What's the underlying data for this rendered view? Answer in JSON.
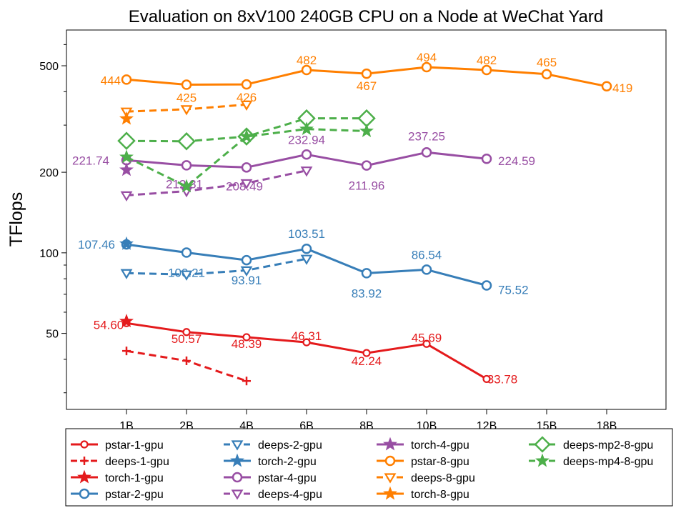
{
  "chart_data": {
    "type": "line",
    "title": "Evaluation on 8xV100 240GB CPU on a Node at WeChat Yard",
    "xlabel": "",
    "ylabel": "TFlops",
    "yscale": "log",
    "ylim": [
      26,
      680
    ],
    "y_ticks": [
      50,
      100,
      200,
      500
    ],
    "categories": [
      "1B",
      "2B",
      "4B",
      "6B",
      "8B",
      "10B",
      "12B",
      "15B",
      "18B"
    ],
    "colors": {
      "red": "#e41a1c",
      "blue": "#377eb8",
      "purple": "#984ea3",
      "orange": "#ff7f00",
      "green": "#4daf4a"
    },
    "series": [
      {
        "name": "pstar-1-gpu",
        "color": "#e41a1c",
        "marker": "circle-small",
        "dash": false,
        "x": [
          "1B",
          "2B",
          "4B",
          "6B",
          "8B",
          "10B",
          "12B"
        ],
        "values": [
          54.6,
          50.57,
          48.39,
          46.31,
          42.24,
          45.69,
          33.78
        ],
        "labels": [
          "54.60",
          "50.57",
          "48.39",
          "46.31",
          "42.24",
          "45.69",
          "33.78"
        ]
      },
      {
        "name": "deeps-1-gpu",
        "color": "#e41a1c",
        "marker": "plus",
        "dash": true,
        "x": [
          "1B",
          "2B",
          "4B"
        ],
        "values": [
          43,
          39.5,
          33.2
        ],
        "labels": []
      },
      {
        "name": "torch-1-gpu",
        "color": "#e41a1c",
        "marker": "star",
        "dash": false,
        "x": [
          "1B"
        ],
        "values": [
          55.5
        ],
        "labels": []
      },
      {
        "name": "pstar-2-gpu",
        "color": "#377eb8",
        "marker": "circle",
        "dash": false,
        "x": [
          "1B",
          "2B",
          "4B",
          "6B",
          "8B",
          "10B",
          "12B"
        ],
        "values": [
          107.46,
          100.21,
          93.91,
          103.51,
          83.92,
          86.54,
          75.52
        ],
        "labels": [
          "107.46",
          "100.21",
          "93.91",
          "103.51",
          "83.92",
          "86.54",
          "75.52"
        ]
      },
      {
        "name": "deeps-2-gpu",
        "color": "#377eb8",
        "marker": "triangle-down",
        "dash": true,
        "x": [
          "1B",
          "2B",
          "4B",
          "6B"
        ],
        "values": [
          84,
          83,
          86,
          95
        ],
        "labels": []
      },
      {
        "name": "torch-2-gpu",
        "color": "#377eb8",
        "marker": "star",
        "dash": false,
        "x": [
          "1B"
        ],
        "values": [
          108
        ],
        "labels": []
      },
      {
        "name": "pstar-4-gpu",
        "color": "#984ea3",
        "marker": "circle",
        "dash": false,
        "x": [
          "1B",
          "2B",
          "4B",
          "6B",
          "8B",
          "10B",
          "12B"
        ],
        "values": [
          221.74,
          212.31,
          208.49,
          232.94,
          211.96,
          237.25,
          224.59
        ],
        "labels": [
          "221.74",
          "212.31",
          "208.49",
          "232.94",
          "211.96",
          "237.25",
          "224.59"
        ]
      },
      {
        "name": "deeps-4-gpu",
        "color": "#984ea3",
        "marker": "triangle-down",
        "dash": true,
        "x": [
          "1B",
          "2B",
          "4B",
          "6B"
        ],
        "values": [
          164,
          170,
          182,
          203
        ],
        "labels": []
      },
      {
        "name": "torch-4-gpu",
        "color": "#984ea3",
        "marker": "star",
        "dash": false,
        "x": [
          "1B"
        ],
        "values": [
          204
        ],
        "labels": []
      },
      {
        "name": "pstar-8-gpu",
        "color": "#ff7f00",
        "marker": "circle",
        "dash": false,
        "x": [
          "1B",
          "2B",
          "4B",
          "6B",
          "8B",
          "10B",
          "12B",
          "15B",
          "18B"
        ],
        "values": [
          444,
          425,
          426,
          482,
          467,
          494,
          482,
          465,
          419
        ],
        "labels": [
          "444",
          "425",
          "426",
          "482",
          "467",
          "494",
          "482",
          "465",
          "419"
        ]
      },
      {
        "name": "deeps-8-gpu",
        "color": "#ff7f00",
        "marker": "triangle-down",
        "dash": true,
        "x": [
          "1B",
          "2B",
          "4B"
        ],
        "values": [
          337,
          344,
          358
        ],
        "labels": []
      },
      {
        "name": "torch-8-gpu",
        "color": "#ff7f00",
        "marker": "star",
        "dash": false,
        "x": [
          "1B"
        ],
        "values": [
          317
        ],
        "labels": []
      },
      {
        "name": "deeps-mp2-8-gpu",
        "color": "#4daf4a",
        "marker": "diamond",
        "dash": true,
        "x": [
          "1B",
          "2B",
          "4B",
          "6B",
          "8B"
        ],
        "values": [
          262,
          261,
          272,
          318,
          318
        ],
        "labels": []
      },
      {
        "name": "deeps-mp4-8-gpu",
        "color": "#4daf4a",
        "marker": "star",
        "dash": true,
        "x": [
          "1B",
          "2B",
          "4B",
          "6B",
          "8B"
        ],
        "values": [
          228,
          177,
          272,
          290,
          285
        ],
        "labels": []
      }
    ],
    "legend": {
      "position": "bottom",
      "columns": 4
    }
  }
}
